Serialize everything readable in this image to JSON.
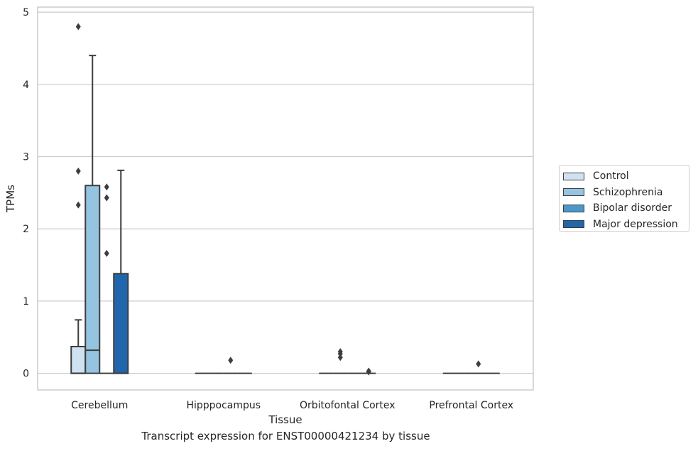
{
  "chart_data": {
    "type": "box",
    "xlabel": "Tissue",
    "ylabel": "TPMs",
    "caption": "Transcript expression for ENST00000421234 by tissue",
    "ylim": [
      -0.23,
      5.07
    ],
    "yticks": [
      "0",
      "1",
      "2",
      "3",
      "4",
      "5"
    ],
    "grid": true,
    "legend_position": "right",
    "categories": [
      "Cerebellum",
      "Hipppocampus",
      "Orbitofontal Cortex",
      "Prefrontal Cortex"
    ],
    "series": [
      {
        "name": "Control",
        "color": "#d0e1f2",
        "boxes": [
          {
            "min": 0,
            "q1": 0,
            "median": 0,
            "q3": 0.37,
            "max": 0.74,
            "outliers": [
              4.8,
              2.8,
              2.33
            ]
          },
          {
            "min": 0,
            "q1": 0,
            "median": 0,
            "q3": 0,
            "max": 0,
            "outliers": []
          },
          {
            "min": 0,
            "q1": 0,
            "median": 0,
            "q3": 0,
            "max": 0,
            "outliers": []
          },
          {
            "min": 0,
            "q1": 0,
            "median": 0,
            "q3": 0,
            "max": 0,
            "outliers": []
          }
        ]
      },
      {
        "name": "Schizophrenia",
        "color": "#94c4df",
        "boxes": [
          {
            "min": 0,
            "q1": 0,
            "median": 0.32,
            "q3": 2.6,
            "max": 4.4,
            "outliers": []
          },
          {
            "min": 0,
            "q1": 0,
            "median": 0,
            "q3": 0,
            "max": 0,
            "outliers": []
          },
          {
            "min": 0,
            "q1": 0,
            "median": 0,
            "q3": 0,
            "max": 0,
            "outliers": [
              0.3,
              0.27,
              0.22
            ]
          },
          {
            "min": 0,
            "q1": 0,
            "median": 0,
            "q3": 0,
            "max": 0,
            "outliers": []
          }
        ]
      },
      {
        "name": "Bipolar disorder",
        "color": "#4a98c9",
        "boxes": [
          {
            "min": 0,
            "q1": 0,
            "median": 0,
            "q3": 0,
            "max": 0,
            "outliers": [
              2.58,
              2.43,
              1.66
            ]
          },
          {
            "min": 0,
            "q1": 0,
            "median": 0,
            "q3": 0,
            "max": 0,
            "outliers": [
              0.18
            ]
          },
          {
            "min": 0,
            "q1": 0,
            "median": 0,
            "q3": 0,
            "max": 0,
            "outliers": []
          },
          {
            "min": 0,
            "q1": 0,
            "median": 0,
            "q3": 0,
            "max": 0,
            "outliers": [
              0.13
            ]
          }
        ]
      },
      {
        "name": "Major depression",
        "color": "#2166ac",
        "boxes": [
          {
            "min": 0,
            "q1": 0,
            "median": 0,
            "q3": 1.38,
            "max": 2.81,
            "outliers": []
          },
          {
            "min": 0,
            "q1": 0,
            "median": 0,
            "q3": 0,
            "max": 0,
            "outliers": []
          },
          {
            "min": 0,
            "q1": 0,
            "median": 0,
            "q3": 0,
            "max": 0,
            "outliers": [
              0.03,
              0.02
            ]
          },
          {
            "min": 0,
            "q1": 0,
            "median": 0,
            "q3": 0,
            "max": 0,
            "outliers": []
          }
        ]
      }
    ]
  }
}
